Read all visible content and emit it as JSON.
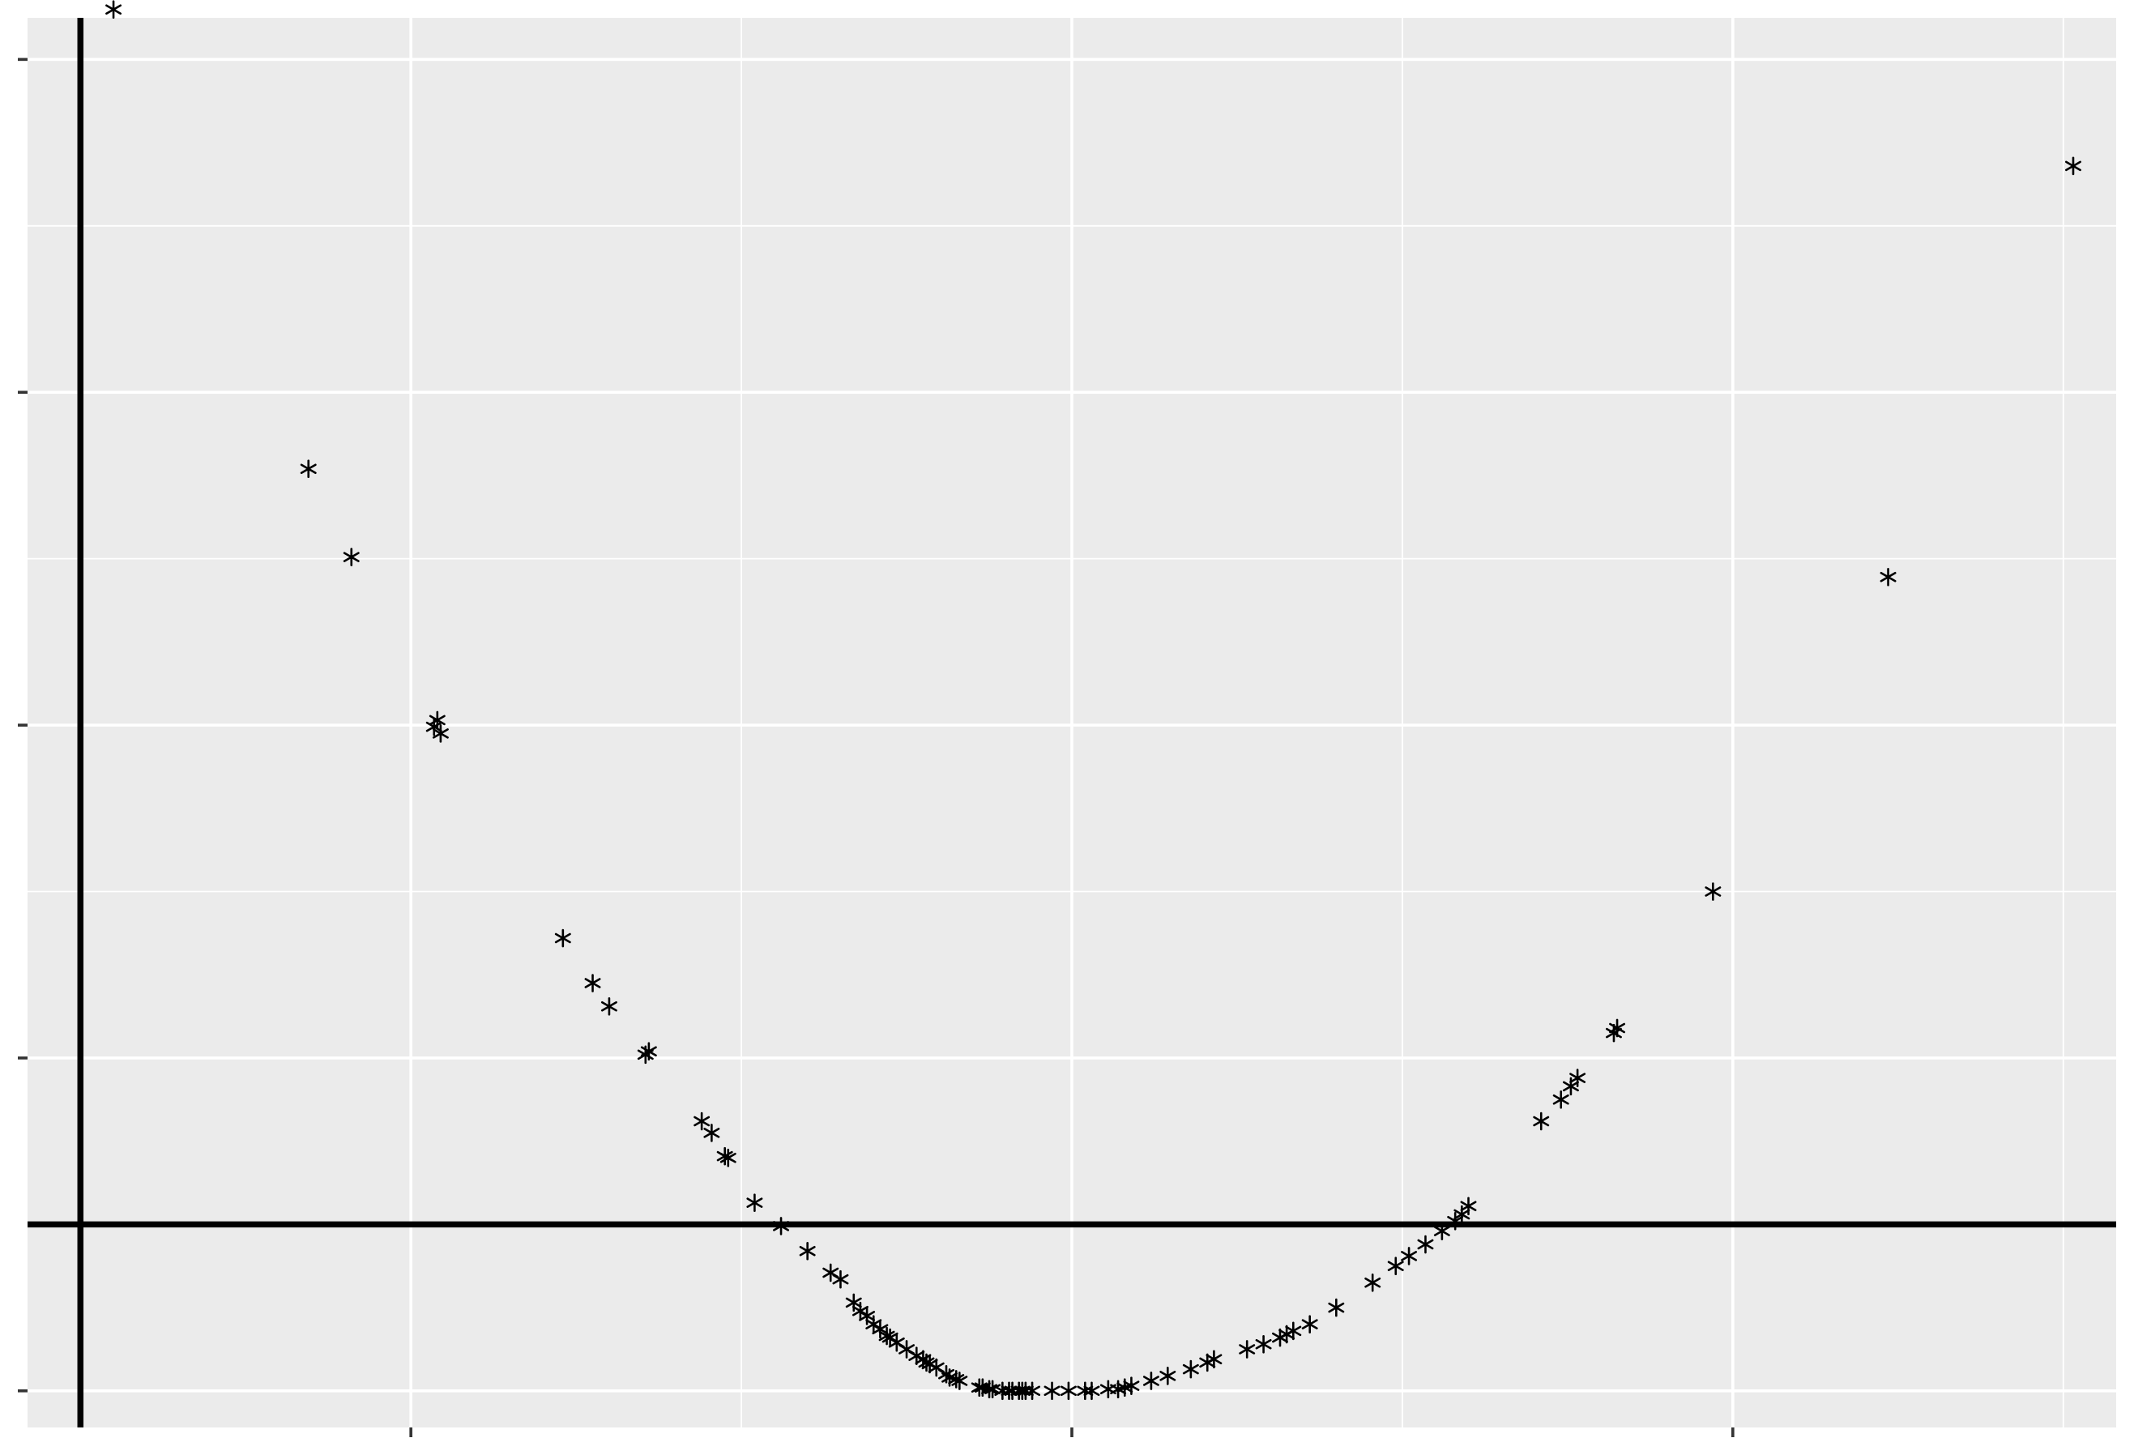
{
  "chart_data": {
    "type": "scatter",
    "title": "",
    "xlabel": "",
    "ylabel": "",
    "xlim": [
      -3.16,
      3.16
    ],
    "ylim": [
      -1.22,
      7.25
    ],
    "x_major_ticks": [
      -2,
      0,
      2
    ],
    "x_minor_ticks": [
      -3,
      -1,
      1,
      3
    ],
    "y_major_ticks": [
      -1,
      1,
      3,
      5,
      7
    ],
    "y_minor_ticks": [
      0,
      2,
      4,
      6
    ],
    "tick_labels_shown": false,
    "grid": true,
    "reference_lines": {
      "hline_y": 0,
      "vline_x": -3.0
    },
    "marker": "asterisk",
    "marker_color": "#000000",
    "panel_color": "#ebebeb",
    "grid_color": "#ffffff",
    "x": [
      -2.9,
      -2.31,
      -2.18,
      -1.93,
      -1.92,
      -1.91,
      -1.54,
      -1.45,
      -1.4,
      -1.29,
      -1.28,
      -1.12,
      -1.09,
      -1.05,
      -1.04,
      -0.96,
      -0.88,
      -0.8,
      -0.73,
      -0.7,
      -0.66,
      -0.64,
      -0.62,
      -0.6,
      -0.58,
      -0.56,
      -0.55,
      -0.53,
      -0.5,
      -0.47,
      -0.45,
      -0.44,
      -0.43,
      -0.41,
      -0.38,
      -0.37,
      -0.35,
      -0.34,
      -0.28,
      -0.27,
      -0.25,
      -0.24,
      -0.21,
      -0.19,
      -0.18,
      -0.16,
      -0.15,
      -0.14,
      -0.12,
      -0.06,
      -0.01,
      0.04,
      0.06,
      0.11,
      0.14,
      0.16,
      0.18,
      0.24,
      0.29,
      0.36,
      0.41,
      0.43,
      0.53,
      0.58,
      0.63,
      0.65,
      0.67,
      0.72,
      0.8,
      0.91,
      0.98,
      1.02,
      1.07,
      1.12,
      1.16,
      1.18,
      1.2,
      1.42,
      1.48,
      1.51,
      1.53,
      1.64,
      1.65,
      1.94,
      2.47,
      3.03
    ],
    "y": [
      7.3,
      4.54,
      4.01,
      2.99,
      3.03,
      2.95,
      1.72,
      1.45,
      1.31,
      1.02,
      1.04,
      0.62,
      0.55,
      0.41,
      0.4,
      0.13,
      -0.01,
      -0.16,
      -0.29,
      -0.33,
      -0.47,
      -0.52,
      -0.55,
      -0.6,
      -0.63,
      -0.67,
      -0.68,
      -0.71,
      -0.75,
      -0.79,
      -0.81,
      -0.83,
      -0.84,
      -0.86,
      -0.9,
      -0.92,
      -0.93,
      -0.94,
      -0.98,
      -0.98,
      -0.99,
      -0.99,
      -1.0,
      -1.0,
      -1.0,
      -1.0,
      -1.0,
      -1.0,
      -1.0,
      -1.0,
      -1.0,
      -1.0,
      -1.0,
      -0.99,
      -0.99,
      -0.98,
      -0.97,
      -0.94,
      -0.91,
      -0.87,
      -0.83,
      -0.81,
      -0.75,
      -0.72,
      -0.68,
      -0.66,
      -0.64,
      -0.6,
      -0.5,
      -0.35,
      -0.25,
      -0.19,
      -0.12,
      -0.04,
      0.02,
      0.06,
      0.11,
      0.62,
      0.75,
      0.83,
      0.88,
      1.15,
      1.18,
      2.0,
      3.89,
      6.36
    ]
  }
}
